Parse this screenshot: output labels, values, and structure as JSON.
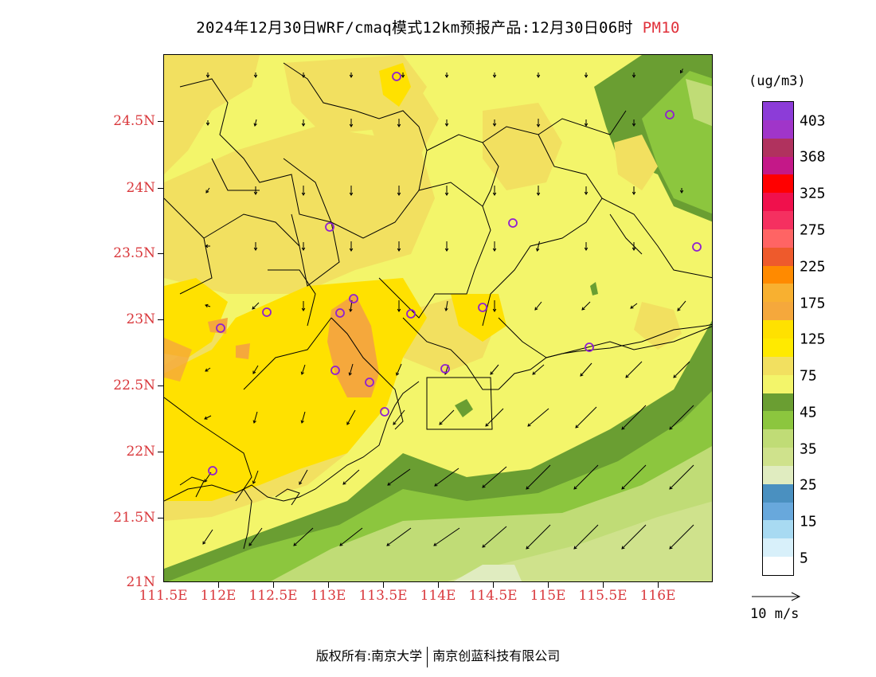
{
  "title": {
    "main": "2024年12月30日WRF/cmaq模式12km预报产品:12月30日06时",
    "species": "PM10"
  },
  "axes": {
    "lat_labels": [
      "24.5N",
      "24N",
      "23.5N",
      "23N",
      "22.5N",
      "22N",
      "21.5N",
      "21N"
    ],
    "lon_labels": [
      "111.5E",
      "112E",
      "112.5E",
      "113E",
      "113.5E",
      "114E",
      "114.5E",
      "115E",
      "115.5E",
      "116E"
    ]
  },
  "legend": {
    "unit": "(ug/m3)",
    "labels": [
      "403",
      "368",
      "325",
      "275",
      "225",
      "175",
      "125",
      "75",
      "45",
      "35",
      "25",
      "15",
      "5"
    ],
    "colors": [
      "#8c3cd8",
      "#a035c9",
      "#b0325e",
      "#c41888",
      "#ff0000",
      "#f0104c",
      "#f53060",
      "#ff6464",
      "#ee5a2c",
      "#ff8a00",
      "#f8b030",
      "#f5a83c",
      "#ffe100",
      "#ffea00",
      "#f2e060",
      "#f3f56a",
      "#6a9e32",
      "#8cc63e",
      "#c0dc76",
      "#cfe28c",
      "#e0ecc0",
      "#4a90c0",
      "#68a8dc",
      "#a8daf2",
      "#d8f0fa",
      "#ffffff"
    ]
  },
  "vector_reference": {
    "label": "10 m/s"
  },
  "station_marker_color": "#9020d0",
  "copyright": {
    "left": "版权所有:南京大学",
    "right": "南京创蓝科技有限公司"
  }
}
